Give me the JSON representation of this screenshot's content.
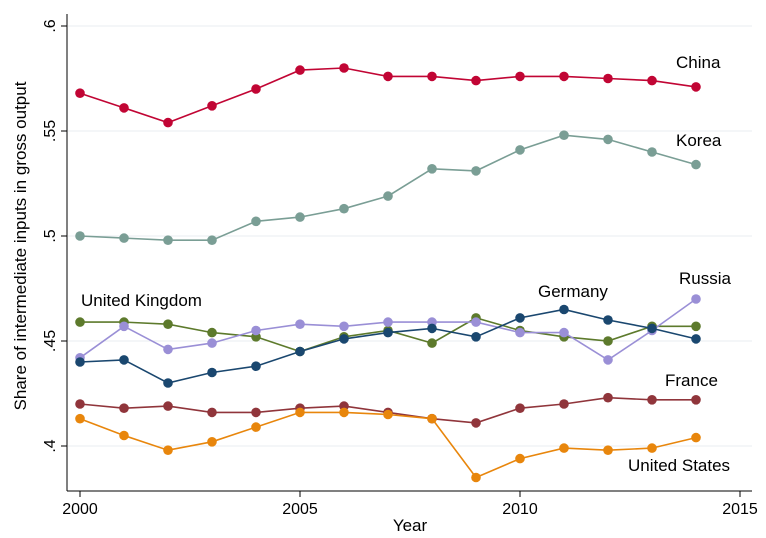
{
  "chart_data": {
    "type": "line",
    "title": "",
    "xlabel": "Year",
    "ylabel": "Share of intermediate inputs in gross output",
    "xlim": [
      2000,
      2015
    ],
    "ylim": [
      0.385,
      0.6
    ],
    "x_ticks": [
      2000,
      2005,
      2010,
      2015
    ],
    "x_tick_labels": [
      "2000",
      "2005",
      "2010",
      "2015"
    ],
    "y_ticks": [
      0.4,
      0.45,
      0.5,
      0.55,
      0.6
    ],
    "y_tick_labels": [
      ".4",
      ".45",
      ".5",
      ".55",
      ".6"
    ],
    "grid": true,
    "legend": "none (direct labels)",
    "x": [
      2000,
      2001,
      2002,
      2003,
      2004,
      2005,
      2006,
      2007,
      2008,
      2009,
      2010,
      2011,
      2012,
      2013,
      2014
    ],
    "series": [
      {
        "name": "China",
        "color": "#c10534",
        "values": [
          0.568,
          0.561,
          0.554,
          0.562,
          0.57,
          0.579,
          0.58,
          0.576,
          0.576,
          0.574,
          0.576,
          0.576,
          0.575,
          0.574,
          0.571
        ]
      },
      {
        "name": "Korea",
        "color": "#7a9e95",
        "values": [
          0.5,
          0.499,
          0.498,
          0.498,
          0.507,
          0.509,
          0.513,
          0.519,
          0.532,
          0.531,
          0.541,
          0.548,
          0.546,
          0.54,
          0.534
        ]
      },
      {
        "name": "United Kingdom",
        "color": "#5d7a2c",
        "values": [
          0.459,
          0.459,
          0.458,
          0.454,
          0.452,
          0.445,
          0.452,
          0.455,
          0.449,
          0.461,
          0.455,
          0.452,
          0.45,
          0.457,
          0.457
        ]
      },
      {
        "name": "Russia",
        "color": "#9a8fd6",
        "values": [
          0.442,
          0.457,
          0.446,
          0.449,
          0.455,
          0.458,
          0.457,
          0.459,
          0.459,
          0.459,
          0.454,
          0.454,
          0.441,
          0.455,
          0.47
        ]
      },
      {
        "name": "Germany",
        "color": "#1a476f",
        "values": [
          0.44,
          0.441,
          0.43,
          0.435,
          0.438,
          0.445,
          0.451,
          0.454,
          0.456,
          0.452,
          0.461,
          0.465,
          0.46,
          0.456,
          0.451
        ]
      },
      {
        "name": "France",
        "color": "#90353b",
        "values": [
          0.42,
          0.418,
          0.419,
          0.416,
          0.416,
          0.418,
          0.419,
          0.416,
          0.413,
          0.411,
          0.418,
          0.42,
          0.423,
          0.422,
          0.422
        ]
      },
      {
        "name": "United States",
        "color": "#e8860c",
        "values": [
          0.413,
          0.405,
          0.398,
          0.402,
          0.409,
          0.416,
          0.416,
          0.415,
          0.413,
          0.385,
          0.394,
          0.399,
          0.398,
          0.399,
          0.404
        ]
      }
    ]
  }
}
